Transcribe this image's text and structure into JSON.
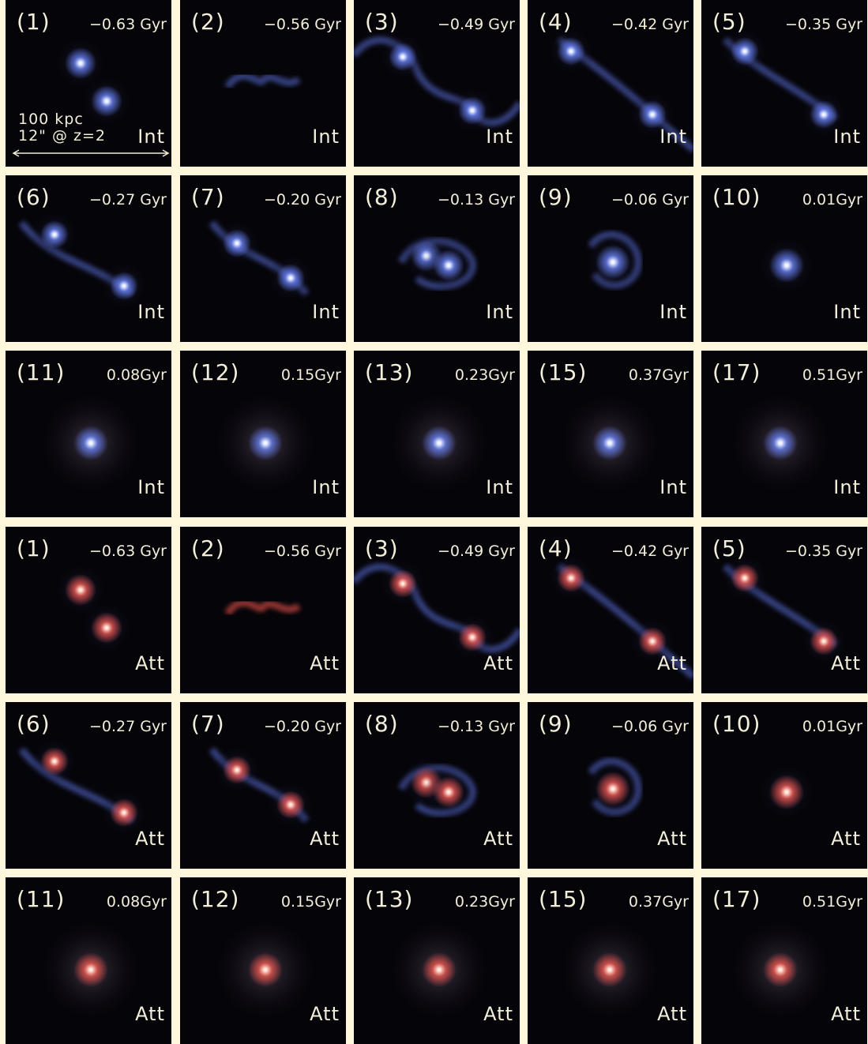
{
  "scale_bar": {
    "length_label": "100 kpc",
    "angle_label": "12\" @ z=2"
  },
  "colors": {
    "background": "#fff8dc",
    "panel": "#050409",
    "text": "#f2eed9",
    "intrinsic_core": "#dfe7ff",
    "intrinsic_glow": "#6b86ff",
    "attenuated_core": "#ffd2c2",
    "attenuated_glow": "#ff5a50"
  },
  "panels": [
    {
      "snapshot": "(1)",
      "time": "−0.63 Gyr",
      "mode": "Int"
    },
    {
      "snapshot": "(2)",
      "time": "−0.56 Gyr",
      "mode": "Int"
    },
    {
      "snapshot": "(3)",
      "time": "−0.49 Gyr",
      "mode": "Int"
    },
    {
      "snapshot": "(4)",
      "time": "−0.42 Gyr",
      "mode": "Int"
    },
    {
      "snapshot": "(5)",
      "time": "−0.35 Gyr",
      "mode": "Int"
    },
    {
      "snapshot": "(6)",
      "time": "−0.27 Gyr",
      "mode": "Int"
    },
    {
      "snapshot": "(7)",
      "time": "−0.20 Gyr",
      "mode": "Int"
    },
    {
      "snapshot": "(8)",
      "time": "−0.13 Gyr",
      "mode": "Int"
    },
    {
      "snapshot": "(9)",
      "time": "−0.06 Gyr",
      "mode": "Int"
    },
    {
      "snapshot": "(10)",
      "time": "0.01Gyr",
      "mode": "Int"
    },
    {
      "snapshot": "(11)",
      "time": "0.08Gyr",
      "mode": "Int"
    },
    {
      "snapshot": "(12)",
      "time": "0.15Gyr",
      "mode": "Int"
    },
    {
      "snapshot": "(13)",
      "time": "0.23Gyr",
      "mode": "Int"
    },
    {
      "snapshot": "(15)",
      "time": "0.37Gyr",
      "mode": "Int"
    },
    {
      "snapshot": "(17)",
      "time": "0.51Gyr",
      "mode": "Int"
    },
    {
      "snapshot": "(1)",
      "time": "−0.63 Gyr",
      "mode": "Att"
    },
    {
      "snapshot": "(2)",
      "time": "−0.56 Gyr",
      "mode": "Att"
    },
    {
      "snapshot": "(3)",
      "time": "−0.49 Gyr",
      "mode": "Att"
    },
    {
      "snapshot": "(4)",
      "time": "−0.42 Gyr",
      "mode": "Att"
    },
    {
      "snapshot": "(5)",
      "time": "−0.35 Gyr",
      "mode": "Att"
    },
    {
      "snapshot": "(6)",
      "time": "−0.27 Gyr",
      "mode": "Att"
    },
    {
      "snapshot": "(7)",
      "time": "−0.20 Gyr",
      "mode": "Att"
    },
    {
      "snapshot": "(8)",
      "time": "−0.13 Gyr",
      "mode": "Att"
    },
    {
      "snapshot": "(9)",
      "time": "−0.06 Gyr",
      "mode": "Att"
    },
    {
      "snapshot": "(10)",
      "time": "0.01Gyr",
      "mode": "Att"
    },
    {
      "snapshot": "(11)",
      "time": "0.08Gyr",
      "mode": "Att"
    },
    {
      "snapshot": "(12)",
      "time": "0.15Gyr",
      "mode": "Att"
    },
    {
      "snapshot": "(13)",
      "time": "0.23Gyr",
      "mode": "Att"
    },
    {
      "snapshot": "(15)",
      "time": "0.37Gyr",
      "mode": "Att"
    },
    {
      "snapshot": "(17)",
      "time": "0.51Gyr",
      "mode": "Att"
    }
  ]
}
